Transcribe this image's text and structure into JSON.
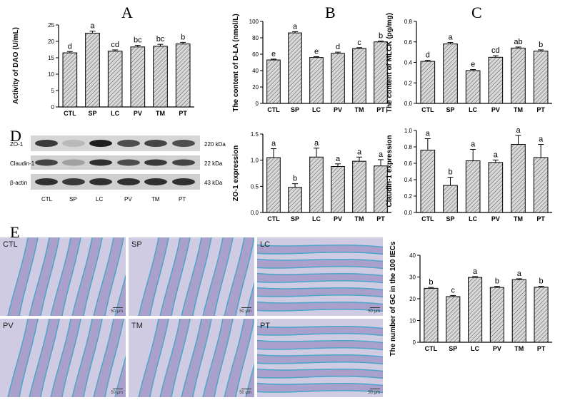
{
  "panel_letters": {
    "a": "A",
    "b": "B",
    "c": "C",
    "d": "D",
    "e": "E"
  },
  "chart_data": [
    {
      "id": "chartA",
      "type": "bar",
      "ylabel": "Activity of DAO (U/mL)",
      "categories": [
        "CTL",
        "SP",
        "LC",
        "PV",
        "TM",
        "PT"
      ],
      "values": [
        16.5,
        22.5,
        17.0,
        18.3,
        18.5,
        19.2
      ],
      "errors": [
        0.4,
        0.6,
        0.4,
        0.5,
        0.6,
        0.5
      ],
      "letters": [
        "d",
        "a",
        "cd",
        "bc",
        "bc",
        "b"
      ],
      "ylim": [
        0,
        25
      ],
      "yticks": [
        0,
        5,
        10,
        15,
        20,
        25
      ]
    },
    {
      "id": "chartB",
      "type": "bar",
      "ylabel": "The content of D-LA (nmol/L)",
      "categories": [
        "CTL",
        "SP",
        "LC",
        "PV",
        "TM",
        "PT"
      ],
      "values": [
        53,
        86,
        56,
        61,
        67,
        75
      ],
      "errors": [
        1,
        1.5,
        1,
        1.5,
        1,
        1
      ],
      "letters": [
        "e",
        "a",
        "e",
        "d",
        "c",
        "b"
      ],
      "ylim": [
        0,
        100
      ],
      "yticks": [
        0,
        20,
        40,
        60,
        80,
        100
      ]
    },
    {
      "id": "chartC",
      "type": "bar",
      "ylabel": "The content of MLCK (pg/mg)",
      "categories": [
        "CTL",
        "SP",
        "LC",
        "PV",
        "TM",
        "PT"
      ],
      "values": [
        0.41,
        0.58,
        0.32,
        0.45,
        0.54,
        0.51
      ],
      "errors": [
        0.01,
        0.015,
        0.01,
        0.015,
        0.01,
        0.012
      ],
      "letters": [
        "d",
        "a",
        "e",
        "cd",
        "ab",
        "b"
      ],
      "ylim": [
        0,
        0.8
      ],
      "yticks": [
        "0.0",
        "0.2",
        "0.4",
        "0.6",
        "0.8"
      ]
    },
    {
      "id": "chartZO",
      "type": "bar",
      "ylabel": "ZO-1 expression",
      "categories": [
        "CTL",
        "SP",
        "LC",
        "PV",
        "TM",
        "PT"
      ],
      "values": [
        1.05,
        0.48,
        1.06,
        0.88,
        0.98,
        0.89
      ],
      "errors": [
        0.17,
        0.07,
        0.17,
        0.05,
        0.08,
        0.12
      ],
      "letters": [
        "a",
        "b",
        "a",
        "a",
        "a",
        "a"
      ],
      "ylim": [
        0,
        1.5
      ],
      "yticks": [
        "0.0",
        "0.5",
        "1.0",
        "1.5"
      ]
    },
    {
      "id": "chartCL",
      "type": "bar",
      "ylabel": "Claudin-1 expression",
      "categories": [
        "CTL",
        "SP",
        "LC",
        "PV",
        "TM",
        "PT"
      ],
      "values": [
        0.76,
        0.33,
        0.63,
        0.61,
        0.83,
        0.67
      ],
      "errors": [
        0.14,
        0.1,
        0.14,
        0.03,
        0.11,
        0.16
      ],
      "letters": [
        "a",
        "b",
        "a",
        "a",
        "a",
        "a"
      ],
      "ylim": [
        0,
        1.0
      ],
      "yticks": [
        "0.0",
        "0.2",
        "0.4",
        "0.6",
        "0.8",
        "1.0"
      ]
    },
    {
      "id": "chartGC",
      "type": "bar",
      "ylabel": "The number of GC in the 100 IECs",
      "categories": [
        "CTL",
        "SP",
        "LC",
        "PV",
        "TM",
        "PT"
      ],
      "values": [
        24.8,
        21.0,
        29.8,
        25.2,
        28.8,
        25.3
      ],
      "errors": [
        0.4,
        0.5,
        0.4,
        0.5,
        0.4,
        0.4
      ],
      "letters": [
        "b",
        "c",
        "a",
        "b",
        "a",
        "b"
      ],
      "ylim": [
        0,
        40
      ],
      "yticks": [
        0,
        10,
        20,
        30,
        40
      ]
    }
  ],
  "western_blot": {
    "rows": [
      "ZO-1",
      "Claudin-1",
      "β-actin"
    ],
    "sizes": [
      "220 kDa",
      "22 kDa",
      "43 kDa"
    ],
    "lanes": [
      "CTL",
      "SP",
      "LC",
      "PV",
      "TM",
      "PT"
    ]
  },
  "micrographs": {
    "labels": [
      "CTL",
      "SP",
      "LC",
      "PV",
      "TM",
      "PT"
    ],
    "scale": "50 μm"
  },
  "colors": {
    "bar_fill": "#c8c8c8",
    "bar_stroke": "#000000",
    "tissue": "#a9a1cc",
    "stain": "#4aa6c8"
  }
}
